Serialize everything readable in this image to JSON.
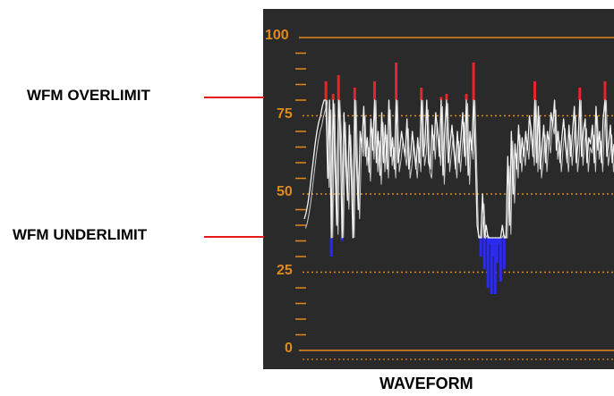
{
  "callouts": {
    "overlimit": "WFM OVERLIMIT",
    "underlimit": "WFM UNDERLIMIT"
  },
  "caption": "WAVEFORM",
  "scale": {
    "labels": [
      "100",
      "75",
      "50",
      "25",
      "0"
    ],
    "values": [
      100,
      75,
      50,
      25,
      0
    ],
    "min": 0,
    "max": 100
  },
  "limits": {
    "over": 80,
    "under": 36
  },
  "colors": {
    "background": "#2a2a2a",
    "graticule": "#e08a1e",
    "trace": "#f4f4f4",
    "over": "#e8232b",
    "under": "#2b2bf0",
    "callout_line": "#e21a1a"
  },
  "chart_data": {
    "type": "line",
    "ylim": [
      0,
      100
    ],
    "series": [
      {
        "values": [
          42,
          44,
          47,
          51,
          56,
          61,
          66,
          70,
          73,
          75,
          78,
          80,
          86,
          55,
          80,
          30,
          82,
          60,
          40,
          88,
          70,
          35,
          76,
          60,
          48,
          72,
          58,
          36,
          84,
          60,
          45,
          70,
          65,
          78,
          62,
          68,
          57,
          74,
          64,
          86,
          60,
          70,
          56,
          76,
          60,
          72,
          58,
          80,
          62,
          68,
          58,
          92,
          60,
          64,
          70,
          66,
          62,
          74,
          58,
          62,
          70,
          64,
          58,
          68,
          60,
          84,
          62,
          66,
          80,
          60,
          58,
          72,
          64,
          76,
          70,
          62,
          81,
          56,
          70,
          82,
          60,
          66,
          72,
          64,
          58,
          70,
          60,
          68,
          76,
          62,
          82,
          56,
          70,
          64,
          92,
          62,
          40,
          36,
          30,
          50,
          26,
          40,
          20,
          34,
          18,
          30,
          18,
          28,
          34,
          22,
          40,
          26,
          36,
          62,
          40,
          70,
          50,
          66,
          58,
          72,
          60,
          68,
          62,
          70,
          64,
          75,
          70,
          62,
          86,
          60,
          78,
          58,
          64,
          72,
          60,
          70,
          66,
          76,
          72,
          80,
          64,
          70,
          60,
          68,
          74,
          66,
          60,
          72,
          62,
          70,
          78,
          60,
          66,
          84,
          62,
          70,
          74,
          60,
          68,
          66,
          72,
          60,
          78,
          64,
          70,
          60,
          74,
          86,
          62,
          66,
          72,
          60,
          66
        ]
      }
    ]
  }
}
